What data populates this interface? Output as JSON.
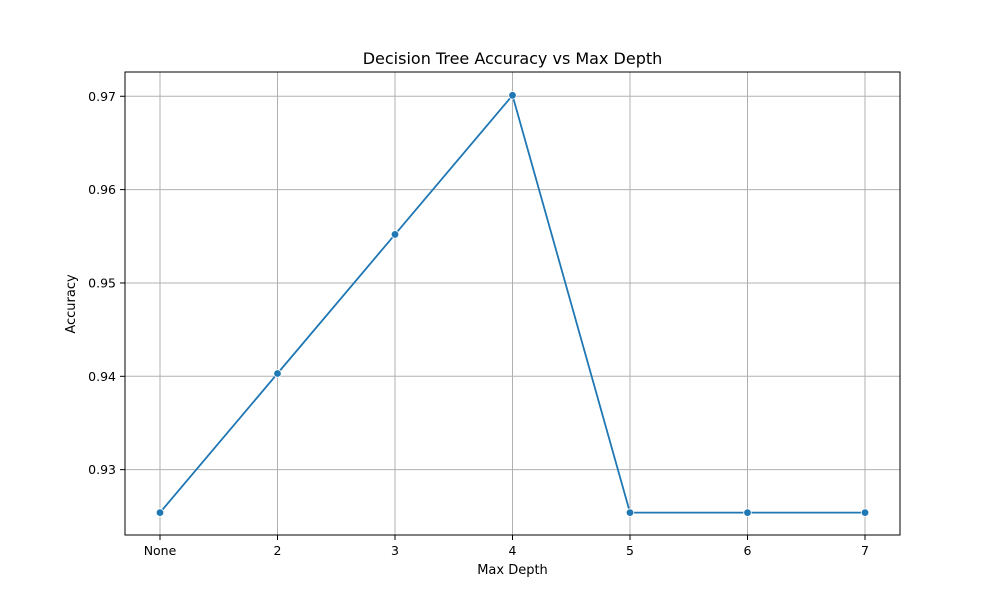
{
  "chart_data": {
    "type": "line",
    "title": "Decision Tree Accuracy vs Max Depth",
    "xlabel": "Max Depth",
    "ylabel": "Accuracy",
    "categories": [
      "None",
      "2",
      "3",
      "4",
      "5",
      "6",
      "7"
    ],
    "series": [
      {
        "values": [
          0.9254,
          0.9403,
          0.9552,
          0.9701,
          0.9254,
          0.9254,
          0.9254
        ],
        "color": "#1f77b4",
        "marker": "circle"
      }
    ],
    "yticks": [
      0.93,
      0.94,
      0.95,
      0.96,
      0.97
    ],
    "ytick_labels": [
      "0.93",
      "0.94",
      "0.95",
      "0.96",
      "0.97"
    ],
    "ylim": [
      0.923,
      0.9726
    ],
    "grid": true,
    "colors": {
      "grid": "#b0b0b0",
      "axes": "#000000",
      "line": "#1f77b4"
    }
  }
}
